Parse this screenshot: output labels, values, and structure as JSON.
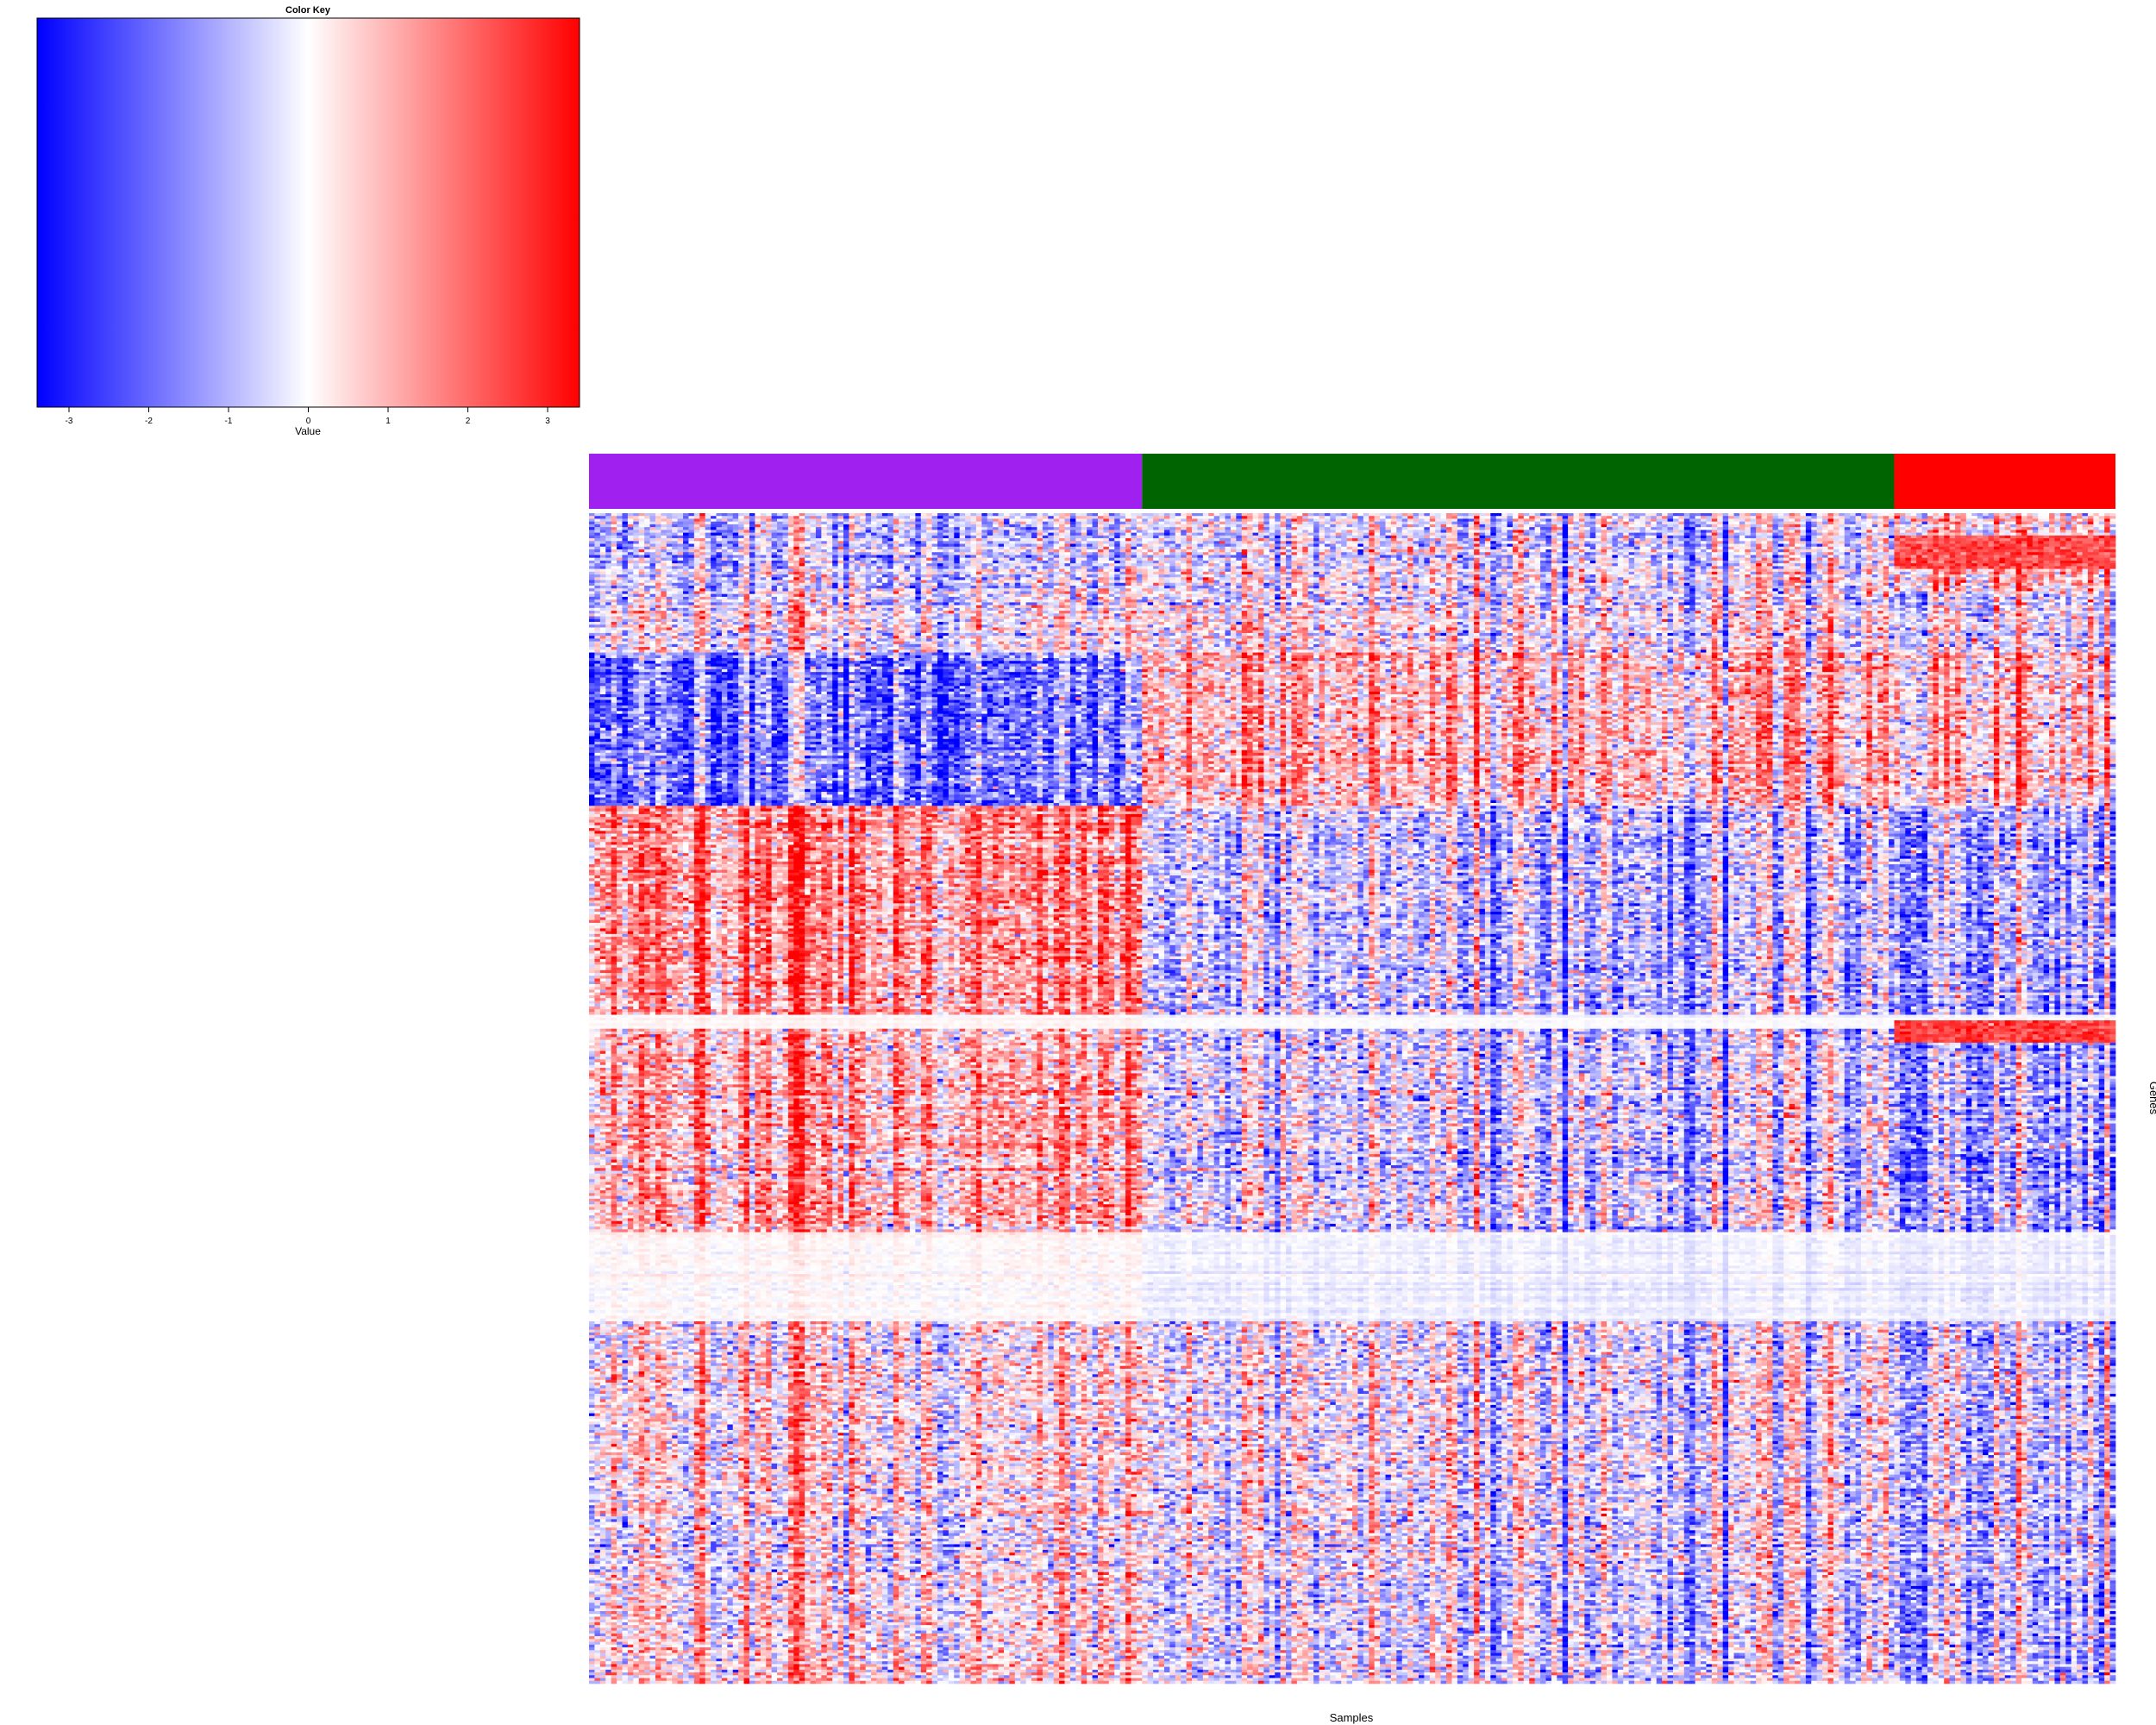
{
  "chart_data": {
    "type": "heatmap",
    "xlabel": "Samples",
    "ylabel": "Genes",
    "color_key": {
      "title": "Color Key",
      "label": "Value",
      "range": [
        -3.4,
        3.4
      ],
      "ticks": [
        -3,
        -2,
        -1,
        0,
        1,
        2,
        3
      ],
      "tick_labels": [
        "-3",
        "-2",
        "-1",
        "0",
        "1",
        "2",
        "3"
      ],
      "colors": {
        "low": "#0000ff",
        "mid": "#ffffff",
        "high": "#ff0000"
      }
    },
    "sample_groups": [
      {
        "color": "#a020f0",
        "n_samples": 100
      },
      {
        "color": "#006400",
        "n_samples": 136
      },
      {
        "color": "#ff0000",
        "n_samples": 40
      }
    ],
    "n_samples": 276,
    "n_genes": 420,
    "gene_blocks": [
      {
        "genes": [
          0,
          28
        ],
        "group_means": [
          -0.8,
          -0.2,
          0.4
        ],
        "rows": [
          [
            14,
            28,
            0,
            0,
            0,
            2.2
          ]
        ]
      },
      {
        "genes": [
          28,
          50
        ],
        "group_means": [
          -0.1,
          0.1,
          -0.4
        ],
        "rows": []
      },
      {
        "genes": [
          50,
          105
        ],
        "group_means": [
          -1.8,
          1.0,
          0.6
        ],
        "rows": []
      },
      {
        "genes": [
          105,
          180
        ],
        "group_means": [
          1.4,
          -0.6,
          -1.2
        ],
        "rows": []
      },
      {
        "genes": [
          180,
          185
        ],
        "group_means": [
          0.2,
          -0.1,
          0.0
        ],
        "rows": [
          [
            180,
            185,
            0,
            0,
            0,
            2.2
          ]
        ]
      },
      {
        "genes": [
          185,
          258
        ],
        "group_means": [
          0.9,
          -0.4,
          -1.3
        ],
        "rows": []
      },
      {
        "genes": [
          258,
          290
        ],
        "group_means": [
          0.1,
          -0.3,
          -0.4
        ],
        "rows": []
      },
      {
        "genes": [
          290,
          360
        ],
        "group_means": [
          0.2,
          -0.1,
          -0.8
        ],
        "rows": []
      },
      {
        "genes": [
          360,
          380
        ],
        "group_means": [
          -0.3,
          -0.2,
          -0.9
        ],
        "rows": []
      },
      {
        "genes": [
          380,
          420
        ],
        "group_means": [
          0.3,
          -0.3,
          -1.0
        ],
        "rows": []
      }
    ]
  }
}
